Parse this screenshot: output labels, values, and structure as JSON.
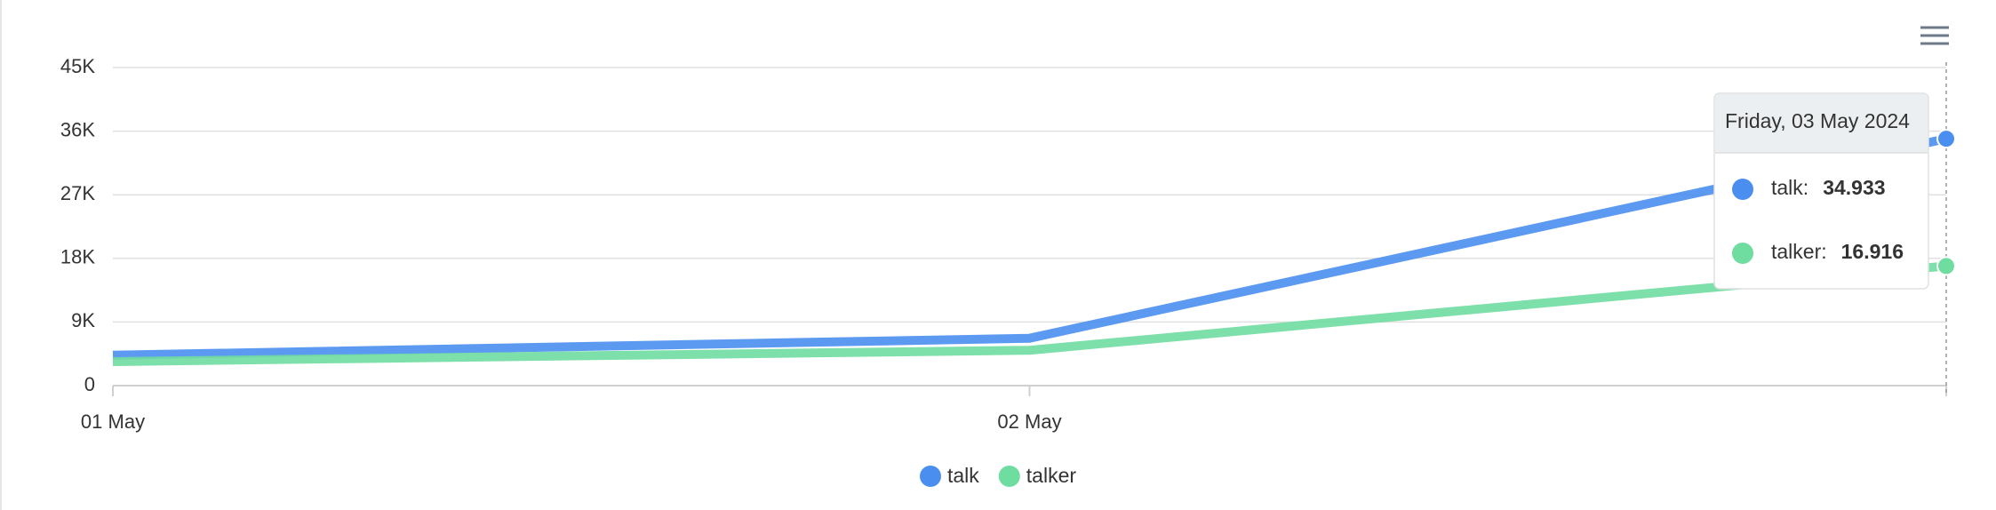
{
  "chart_data": {
    "type": "line",
    "categories": [
      "01 May",
      "02 May",
      null
    ],
    "series": [
      {
        "name": "talk",
        "color": "#4a8ff0",
        "values": [
          4300,
          6700,
          34933
        ]
      },
      {
        "name": "talker",
        "color": "#6fdca0",
        "values": [
          3400,
          5000,
          16916
        ]
      }
    ],
    "ylim": [
      0,
      45000
    ],
    "yticks": [
      0,
      {
        "value": 9000,
        "label": "9K"
      },
      {
        "value": 18000,
        "label": "18K"
      },
      {
        "value": 27000,
        "label": "27K"
      },
      {
        "value": 36000,
        "label": "36K"
      },
      {
        "value": 45000,
        "label": "45K"
      }
    ],
    "grid": true,
    "legend": "bottom",
    "tooltip": {
      "title": "Friday, 03 May 2024",
      "entries": [
        {
          "name": "talk:",
          "value_label": "34.933"
        },
        {
          "name": "talker:",
          "value_label": "16.916"
        }
      ]
    }
  }
}
